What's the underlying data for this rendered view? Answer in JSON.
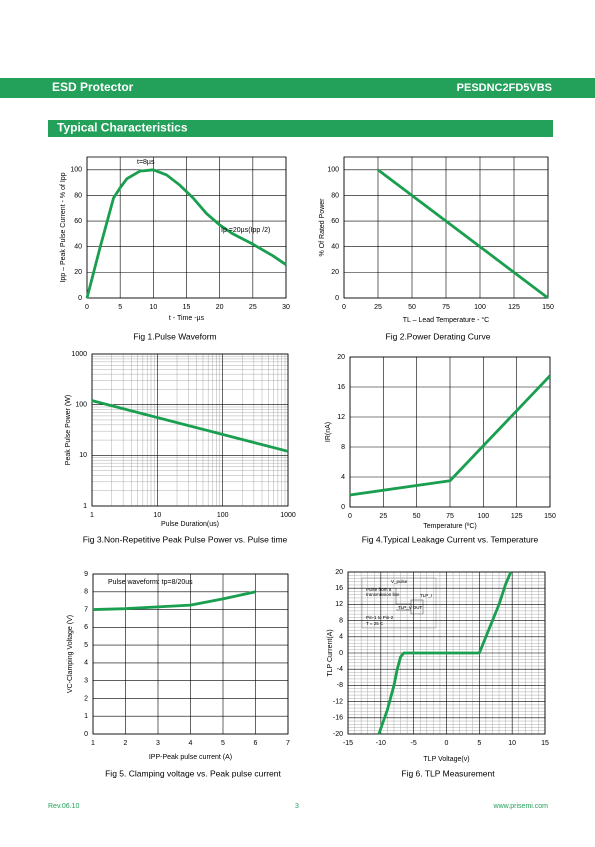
{
  "header": {
    "title": "ESD Protector",
    "part_number": "PESDNC2FD5VBS"
  },
  "section_title": "Typical Characteristics",
  "chart_data": [
    {
      "type": "line",
      "caption": "Fig 1.Pulse Waveform",
      "x_label": "t - Time -µs",
      "y_label": "Ipp – Peak Pulse Current - % of Ipp",
      "annotations": [
        "t=8µs",
        "Ip =20µs(Ipp /2)"
      ],
      "x": [
        0,
        2,
        4,
        5,
        6,
        8,
        10,
        12,
        14,
        16,
        18,
        20,
        22,
        25,
        28,
        30
      ],
      "values": [
        0,
        40,
        78,
        86,
        93,
        99,
        100,
        96,
        88,
        78,
        66,
        57,
        50,
        42,
        33,
        26
      ],
      "color": "#1a9e4f",
      "xlim": [
        0,
        30
      ],
      "ylim": [
        0,
        110
      ],
      "xticks": [
        0,
        5,
        10,
        15,
        20,
        25,
        30
      ],
      "yticks": [
        0,
        20,
        40,
        60,
        80,
        100
      ],
      "grid": true
    },
    {
      "type": "line",
      "caption": "Fig 2.Power Derating Curve",
      "x_label": "TL – Lead Temperature - °C",
      "y_label": "% Of Rated Power",
      "x": [
        25,
        150
      ],
      "values": [
        100,
        0
      ],
      "color": "#1a9e4f",
      "xlim": [
        0,
        150
      ],
      "ylim": [
        0,
        110
      ],
      "xticks": [
        0,
        25,
        50,
        75,
        100,
        125,
        150
      ],
      "yticks": [
        0,
        20,
        40,
        60,
        80,
        100
      ],
      "grid": true
    },
    {
      "type": "line",
      "caption": "Fig 3.Non-Repetitive Peak Pulse Power vs. Pulse time",
      "x_label": "Pulse Duration(us)",
      "y_label": "Peak Pulse Power (W)",
      "x": [
        1,
        1000
      ],
      "values": [
        120,
        12
      ],
      "color": "#1a9e4f",
      "xlim": [
        1,
        1000
      ],
      "ylim": [
        1,
        1000
      ],
      "xticks": [
        1,
        10,
        100,
        1000
      ],
      "yticks": [
        1,
        10,
        100,
        1000
      ],
      "log_x": true,
      "log_y": true,
      "grid": true
    },
    {
      "type": "line",
      "caption": "Fig 4.Typical Leakage Current vs. Temperature",
      "x_label": "Temperature (ºC)",
      "y_label": "IR(nA)",
      "x": [
        0,
        75,
        150
      ],
      "values": [
        1.6,
        3.5,
        17.5
      ],
      "color": "#1a9e4f",
      "xlim": [
        0,
        150
      ],
      "ylim": [
        0,
        20
      ],
      "xticks": [
        0,
        25,
        50,
        75,
        100,
        125,
        150
      ],
      "yticks": [
        0,
        4,
        8,
        12,
        16,
        20
      ],
      "grid": true
    },
    {
      "type": "line",
      "caption": "Fig 5. Clamping voltage vs. Peak pulse current",
      "x_label": "IPP-Peak pulse current (A)",
      "y_label": "VC-Clamping Voltage (V)",
      "annotations": [
        "Pulse waveform: tp=8/20us"
      ],
      "x": [
        1,
        2,
        3,
        4,
        5,
        6
      ],
      "values": [
        7,
        7.05,
        7.15,
        7.25,
        7.6,
        8
      ],
      "color": "#1a9e4f",
      "xlim": [
        1,
        7
      ],
      "ylim": [
        0,
        9
      ],
      "xticks": [
        1,
        2,
        3,
        4,
        5,
        6,
        7
      ],
      "yticks": [
        0,
        1,
        2,
        3,
        4,
        5,
        6,
        7,
        8,
        9
      ],
      "grid": true
    },
    {
      "type": "line",
      "caption": "Fig 6. TLP Measurement",
      "x_label": "TLP Voltage(v)",
      "y_label": "TLP Current(A)",
      "annotations": [
        "V_pulse",
        "Pulse from a",
        "transmission line",
        "TLP_I",
        "TLP_V",
        "DUT",
        "Pin-1 to Pin-2",
        "T = 25 C"
      ],
      "x": [
        -10.3,
        -9,
        -8,
        -7.5,
        -7,
        -6.5,
        5,
        5.5,
        6.5,
        8,
        9,
        9.8
      ],
      "values": [
        -20,
        -14,
        -8,
        -4,
        -1,
        0,
        0,
        2,
        6,
        12,
        17,
        20
      ],
      "color": "#1a9e4f",
      "xlim": [
        -15,
        15
      ],
      "ylim": [
        -20,
        20
      ],
      "xticks": [
        -15,
        -10,
        -5,
        0,
        5,
        10,
        15
      ],
      "yticks": [
        -20,
        -16,
        -12,
        -8,
        -4,
        0,
        4,
        8,
        12,
        16,
        20
      ],
      "grid": true,
      "minor_grid": true
    }
  ],
  "footer": {
    "revision": "Rev.06.10",
    "page": "3",
    "website": "www.prisemi.com"
  }
}
